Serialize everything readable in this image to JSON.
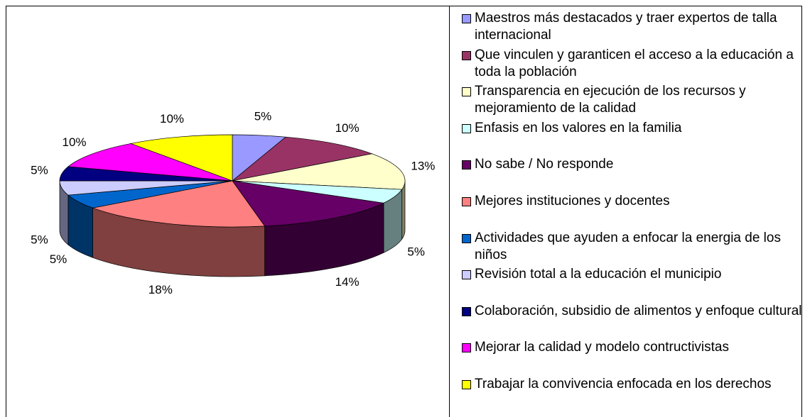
{
  "chart_data": {
    "type": "pie",
    "categories": [
      "Maestros más destacados y traer expertos de talla internacional",
      "Que vinculen y garanticen el acceso a la educación a toda la población",
      "Transparencia en ejecución de los recursos y mejoramiento de la calidad",
      "Enfasis en los valores en la familia",
      "No sabe / No responde",
      "Mejores instituciones y docentes",
      "Actividades que ayuden a enfocar la energia de los niños",
      "Revisión total a la educación el municipio",
      "Colaboración, subsidio de alimentos y enfoque cultural",
      "Mejorar la calidad y modelo contructivistas",
      "Trabajar la convivencia enfocada en los derechos"
    ],
    "values": [
      5,
      10,
      13,
      5,
      14,
      18,
      5,
      5,
      5,
      10,
      10
    ],
    "value_labels": [
      "5%",
      "10%",
      "13%",
      "5%",
      "14%",
      "18%",
      "5%",
      "5%",
      "5%",
      "10%",
      "10%"
    ],
    "colors": [
      "#9999ff",
      "#993366",
      "#ffffcc",
      "#ccffff",
      "#660066",
      "#ff8080",
      "#0066cc",
      "#ccccff",
      "#000080",
      "#ff00ff",
      "#ffff00"
    ],
    "legend": "right"
  }
}
